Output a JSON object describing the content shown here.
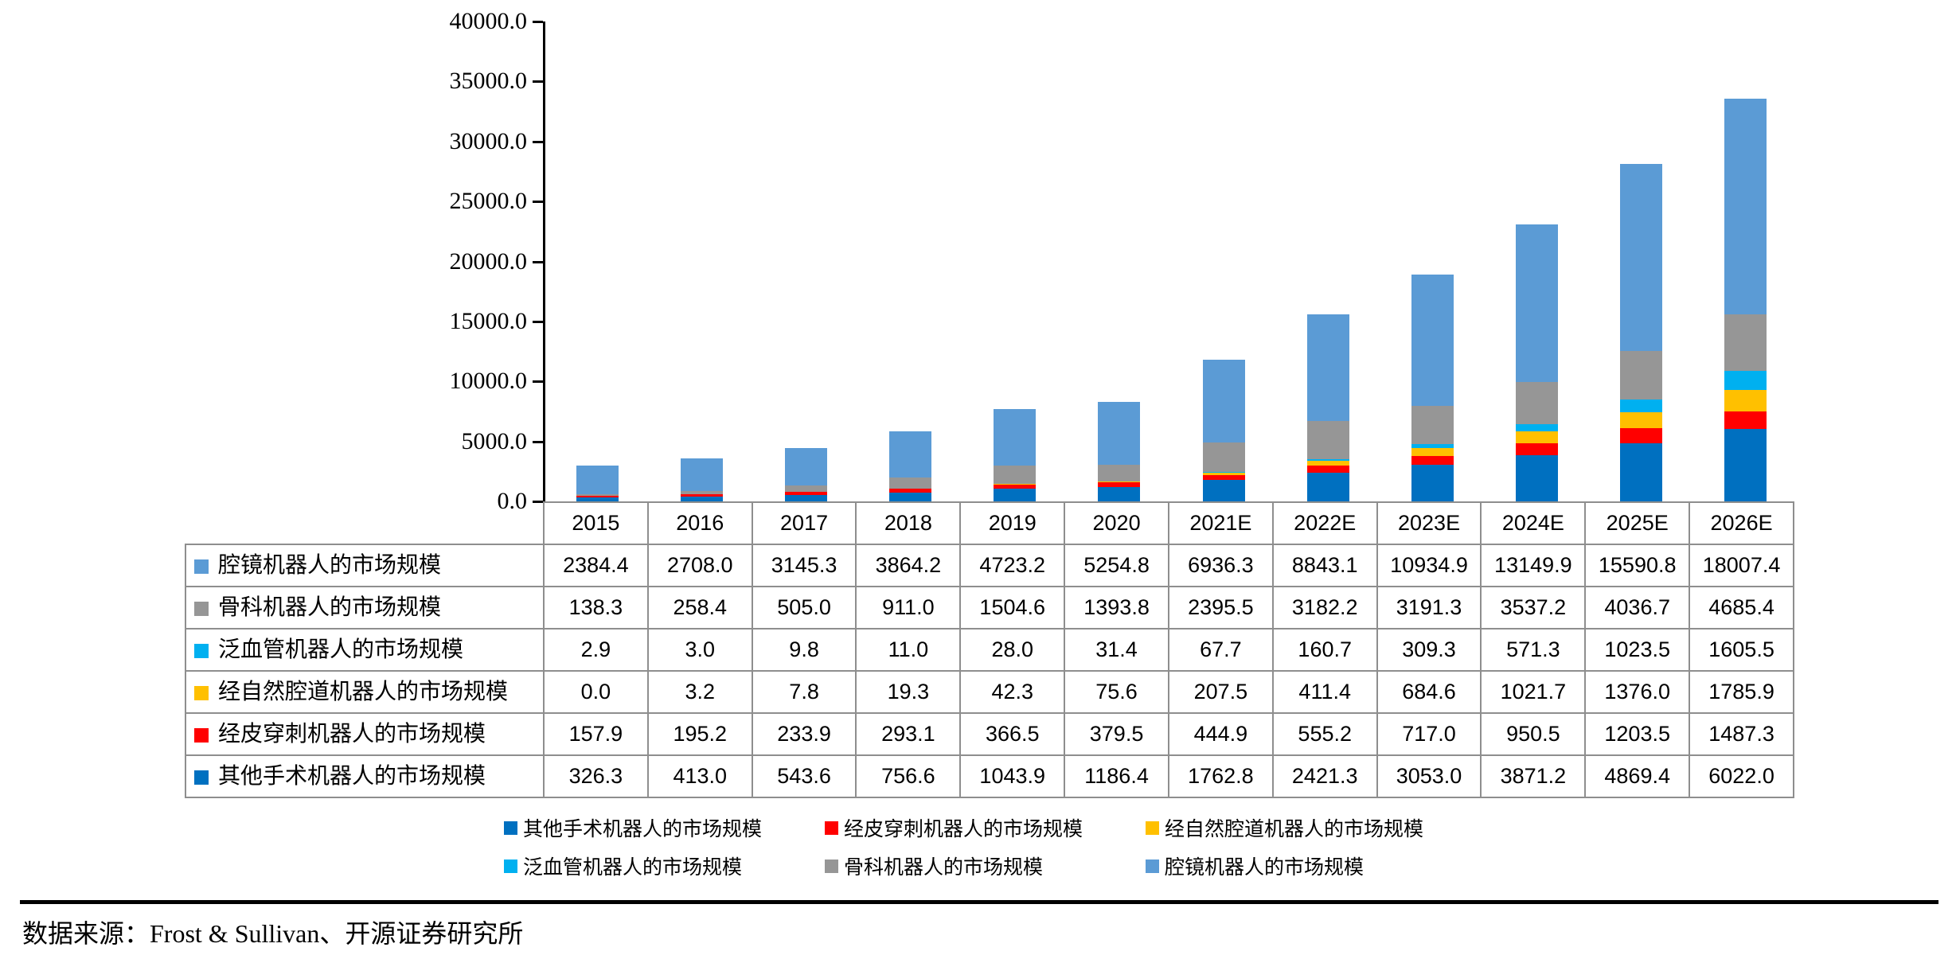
{
  "source_note": "数据来源：Frost & Sullivan、开源证券研究所",
  "chart_data": {
    "type": "bar",
    "stacked": true,
    "grid": false,
    "legend_position": "bottom",
    "ylim": [
      0,
      40000
    ],
    "ytick_step": 5000,
    "ytick_labels": [
      "0.0",
      "5000.0",
      "10000.0",
      "15000.0",
      "20000.0",
      "25000.0",
      "30000.0",
      "35000.0",
      "40000.0"
    ],
    "categories": [
      "2015",
      "2016",
      "2017",
      "2018",
      "2019",
      "2020",
      "2021E",
      "2022E",
      "2023E",
      "2024E",
      "2025E",
      "2026E"
    ],
    "series": [
      {
        "name": "腔镜机器人的市场规模",
        "color": "#5B9BD5",
        "values": [
          2384.4,
          2708.0,
          3145.3,
          3864.2,
          4723.2,
          5254.8,
          6936.3,
          8843.1,
          10934.9,
          13149.9,
          15590.8,
          18007.4
        ]
      },
      {
        "name": "骨科机器人的市场规模",
        "color": "#969696",
        "values": [
          138.3,
          258.4,
          505.0,
          911.0,
          1504.6,
          1393.8,
          2395.5,
          3182.2,
          3191.3,
          3537.2,
          4036.7,
          4685.4
        ]
      },
      {
        "name": "泛血管机器人的市场规模",
        "color": "#00B0F0",
        "values": [
          2.9,
          3.0,
          9.8,
          11.0,
          28.0,
          31.4,
          67.7,
          160.7,
          309.3,
          571.3,
          1023.5,
          1605.5
        ]
      },
      {
        "name": "经自然腔道机器人的市场规模",
        "color": "#FFC000",
        "values": [
          0.0,
          3.2,
          7.8,
          19.3,
          42.3,
          75.6,
          207.5,
          411.4,
          684.6,
          1021.7,
          1376.0,
          1785.9
        ]
      },
      {
        "name": "经皮穿刺机器人的市场规模",
        "color": "#FF0000",
        "values": [
          157.9,
          195.2,
          233.9,
          293.1,
          366.5,
          379.5,
          444.9,
          555.2,
          717.0,
          950.5,
          1203.5,
          1487.3
        ]
      },
      {
        "name": "其他手术机器人的市场规模",
        "color": "#0070C0",
        "values": [
          326.3,
          413.0,
          543.6,
          756.6,
          1043.9,
          1186.4,
          1762.8,
          2421.3,
          3053.0,
          3871.2,
          4869.4,
          6022.0
        ]
      }
    ],
    "stack_order_bottom_to_top": [
      "其他手术机器人的市场规模",
      "经皮穿刺机器人的市场规模",
      "经自然腔道机器人的市场规模",
      "泛血管机器人的市场规模",
      "骨科机器人的市场规模",
      "腔镜机器人的市场规模"
    ],
    "legend": [
      {
        "label": "其他手术机器人的市场规模",
        "color": "#0070C0"
      },
      {
        "label": "经皮穿刺机器人的市场规模",
        "color": "#FF0000"
      },
      {
        "label": "经自然腔道机器人的市场规模",
        "color": "#FFC000"
      },
      {
        "label": "泛血管机器人的市场规模",
        "color": "#00B0F0"
      },
      {
        "label": "骨科机器人的市场规模",
        "color": "#969696"
      },
      {
        "label": "腔镜机器人的市场规模",
        "color": "#5B9BD5"
      }
    ]
  }
}
